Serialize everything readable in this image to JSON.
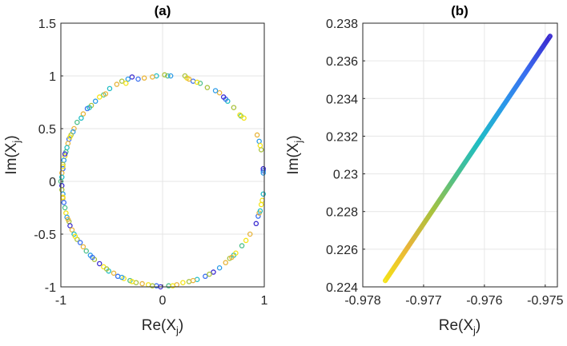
{
  "figure": {
    "colors": [
      "#3b2bd0",
      "#3a6ff0",
      "#2a9be8",
      "#1fbdc4",
      "#4ec08a",
      "#a9c23d",
      "#e8b43a",
      "#f4e316"
    ]
  },
  "chart_data": [
    {
      "type": "scatter",
      "title": "(a)",
      "xlabel_main": "Re(X",
      "xlabel_sub": "j",
      "xlabel_close": ")",
      "ylabel_main": "Im(X",
      "ylabel_sub": "j",
      "ylabel_close": ")",
      "xlim": [
        -1,
        1
      ],
      "ylim": [
        -1,
        1.5
      ],
      "xticks": [
        -1,
        0,
        1
      ],
      "xtick_labels": [
        "-1",
        "0",
        "1"
      ],
      "yticks": [
        -1,
        -0.5,
        0,
        0.5,
        1,
        1.5
      ],
      "ytick_labels": [
        "-1",
        "-0.5",
        "0",
        "0.5",
        "1",
        "1.5"
      ],
      "grid": true,
      "marker": "open-circle",
      "points": [
        [
          -0.3,
          0.99,
          0
        ],
        [
          -0.18,
          0.98,
          6
        ],
        [
          0.05,
          1.0,
          4
        ],
        [
          0.24,
          0.98,
          7
        ],
        [
          0.22,
          1.0,
          5
        ],
        [
          -0.06,
          1.0,
          3
        ],
        [
          -0.1,
          0.99,
          6
        ],
        [
          -0.34,
          0.97,
          2
        ],
        [
          -0.4,
          0.95,
          5
        ],
        [
          -0.45,
          0.92,
          6
        ],
        [
          -0.52,
          0.88,
          3
        ],
        [
          -0.58,
          0.82,
          4
        ],
        [
          -0.62,
          0.8,
          7
        ],
        [
          -0.66,
          0.76,
          2
        ],
        [
          -0.7,
          0.72,
          5
        ],
        [
          -0.74,
          0.69,
          1
        ],
        [
          -0.78,
          0.64,
          6
        ],
        [
          -0.8,
          0.6,
          3
        ],
        [
          -0.84,
          0.56,
          4
        ],
        [
          -0.87,
          0.5,
          6
        ],
        [
          -0.88,
          0.47,
          2
        ],
        [
          -0.9,
          0.44,
          5
        ],
        [
          -0.92,
          0.4,
          1
        ],
        [
          -0.93,
          0.36,
          6
        ],
        [
          -0.94,
          0.32,
          3
        ],
        [
          -0.95,
          0.28,
          4
        ],
        [
          -0.96,
          0.24,
          7
        ],
        [
          -0.97,
          0.2,
          2
        ],
        [
          -0.98,
          0.16,
          5
        ],
        [
          -0.98,
          0.12,
          1
        ],
        [
          -0.99,
          0.08,
          6
        ],
        [
          -0.99,
          0.04,
          3
        ],
        [
          -1.0,
          0.0,
          4
        ],
        [
          -0.99,
          -0.04,
          0
        ],
        [
          -0.99,
          -0.08,
          5
        ],
        [
          -0.98,
          -0.12,
          2
        ],
        [
          -0.98,
          -0.16,
          6
        ],
        [
          -0.97,
          -0.2,
          1
        ],
        [
          -0.96,
          -0.25,
          4
        ],
        [
          -0.95,
          -0.3,
          7
        ],
        [
          -0.94,
          -0.34,
          2
        ],
        [
          -0.92,
          -0.38,
          5
        ],
        [
          -0.91,
          -0.42,
          0
        ],
        [
          -0.89,
          -0.46,
          6
        ],
        [
          -0.87,
          -0.5,
          3
        ],
        [
          -0.84,
          -0.55,
          5
        ],
        [
          -0.81,
          -0.58,
          1
        ],
        [
          -0.78,
          -0.62,
          6
        ],
        [
          -0.75,
          -0.66,
          4
        ],
        [
          -0.71,
          -0.7,
          2
        ],
        [
          -0.67,
          -0.74,
          5
        ],
        [
          -0.62,
          -0.78,
          0
        ],
        [
          -0.58,
          -0.81,
          7
        ],
        [
          -0.53,
          -0.85,
          3
        ],
        [
          -0.48,
          -0.87,
          6
        ],
        [
          -0.44,
          -0.9,
          1
        ],
        [
          -0.38,
          -0.92,
          7
        ],
        [
          -0.32,
          -0.94,
          4
        ],
        [
          -0.26,
          -0.96,
          5
        ],
        [
          -0.2,
          -0.97,
          6
        ],
        [
          -0.14,
          -0.98,
          7
        ],
        [
          -0.06,
          -0.99,
          1
        ],
        [
          -0.02,
          -1.0,
          0
        ],
        [
          0.06,
          -0.99,
          4
        ],
        [
          0.14,
          -0.98,
          6
        ],
        [
          0.2,
          -0.96,
          7
        ],
        [
          0.26,
          -0.95,
          5
        ],
        [
          0.34,
          -0.93,
          3
        ],
        [
          0.42,
          -0.9,
          1
        ],
        [
          0.5,
          -0.86,
          0
        ],
        [
          0.56,
          -0.82,
          2
        ],
        [
          0.62,
          -0.77,
          6
        ],
        [
          0.66,
          -0.73,
          5
        ],
        [
          0.7,
          -0.7,
          3
        ],
        [
          0.72,
          -0.68,
          7
        ],
        [
          0.78,
          -0.61,
          4
        ],
        [
          0.86,
          -0.5,
          6
        ],
        [
          0.92,
          -0.4,
          0
        ],
        [
          0.94,
          -0.33,
          1
        ],
        [
          0.95,
          -0.3,
          6
        ],
        [
          0.98,
          -0.18,
          7
        ],
        [
          0.99,
          -0.12,
          3
        ],
        [
          0.99,
          0.1,
          1
        ],
        [
          0.99,
          0.12,
          0
        ],
        [
          0.97,
          0.3,
          5
        ],
        [
          0.95,
          0.38,
          2
        ],
        [
          0.93,
          0.44,
          6
        ],
        [
          0.77,
          0.62,
          4
        ],
        [
          0.76,
          0.63,
          7
        ],
        [
          0.64,
          0.76,
          3
        ],
        [
          0.62,
          0.78,
          1
        ],
        [
          0.6,
          0.8,
          0
        ],
        [
          0.56,
          0.84,
          6
        ],
        [
          0.52,
          0.86,
          2
        ],
        [
          0.44,
          0.89,
          5
        ],
        [
          0.37,
          0.93,
          4
        ],
        [
          0.3,
          0.95,
          1
        ],
        [
          0.26,
          0.97,
          6
        ],
        [
          0.34,
          0.94,
          7
        ],
        [
          0.08,
          1.0,
          2
        ],
        [
          0.02,
          1.01,
          5
        ],
        [
          -0.24,
          0.97,
          1
        ],
        [
          -0.36,
          0.93,
          7
        ],
        [
          -0.56,
          0.83,
          6
        ],
        [
          -0.72,
          0.7,
          3
        ],
        [
          -0.91,
          0.42,
          7
        ],
        [
          -0.96,
          0.26,
          0
        ],
        [
          -0.98,
          0.14,
          7
        ],
        [
          -0.98,
          -0.15,
          7
        ],
        [
          -0.93,
          -0.36,
          6
        ],
        [
          -0.86,
          -0.52,
          7
        ],
        [
          -0.69,
          -0.72,
          1
        ],
        [
          -0.55,
          -0.83,
          5
        ],
        [
          -0.4,
          -0.91,
          2
        ],
        [
          -0.3,
          -0.95,
          7
        ],
        [
          -0.1,
          -0.99,
          5
        ],
        [
          0.1,
          -0.99,
          7
        ],
        [
          0.3,
          -0.94,
          6
        ],
        [
          0.46,
          -0.88,
          5
        ],
        [
          0.68,
          -0.72,
          6
        ],
        [
          0.82,
          -0.56,
          7
        ],
        [
          0.96,
          -0.28,
          3
        ],
        [
          0.97,
          -0.22,
          7
        ],
        [
          0.99,
          0.08,
          2
        ],
        [
          0.96,
          0.34,
          7
        ],
        [
          0.8,
          0.6,
          7
        ],
        [
          0.7,
          0.7,
          5
        ]
      ]
    },
    {
      "type": "scatter",
      "title": "(b)",
      "xlabel_main": "Re(X",
      "xlabel_sub": "j",
      "xlabel_close": ")",
      "ylabel_main": "Im(X",
      "ylabel_sub": "j",
      "ylabel_close": ")",
      "xlim": [
        -0.978,
        -0.9748
      ],
      "ylim": [
        0.224,
        0.238
      ],
      "xticks": [
        -0.978,
        -0.977,
        -0.976,
        -0.975
      ],
      "xtick_labels": [
        "-0.978",
        "-0.977",
        "-0.976",
        "-0.975"
      ],
      "yticks": [
        0.224,
        0.226,
        0.228,
        0.23,
        0.232,
        0.234,
        0.236,
        0.238
      ],
      "ytick_labels": [
        "0.224",
        "0.226",
        "0.228",
        "0.23",
        "0.232",
        "0.234",
        "0.236",
        "0.238"
      ],
      "grid": true,
      "marker": "open-circle",
      "line_start": [
        -0.97763,
        0.22433
      ],
      "line_end": [
        -0.97492,
        0.23731
      ],
      "n_points": 260,
      "color_gradient": "yellow-at-start to blue-at-end"
    }
  ]
}
